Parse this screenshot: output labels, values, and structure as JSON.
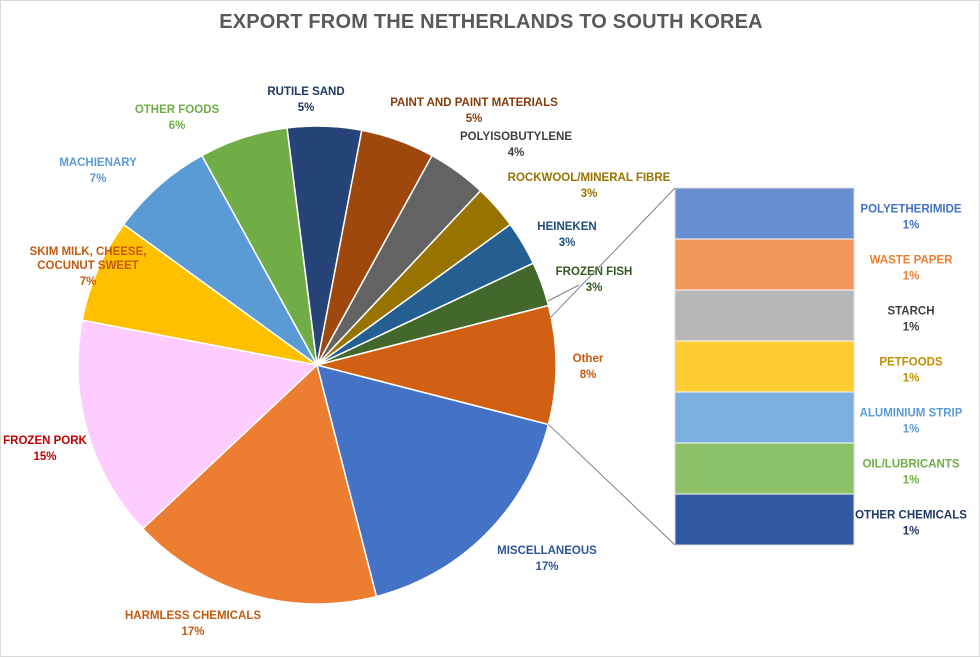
{
  "chart_data": {
    "type": "pie",
    "title": "EXPORT FROM THE NETHERLANDS TO SOUTH KOREA",
    "slices": [
      {
        "label": "MISCELLANEOUS",
        "value": 17,
        "display": "17%",
        "color": "#4472C4",
        "label_color": "#2F5597"
      },
      {
        "label": "HARMLESS CHEMICALS",
        "value": 17,
        "display": "17%",
        "color": "#ED7D31",
        "label_color": "#C55A11"
      },
      {
        "label": "FROZEN PORK",
        "value": 15,
        "display": "15%",
        "color": "#FFCCFF",
        "label_color": "#C00000"
      },
      {
        "label": "SKIM MILK, CHEESE, COCUNUT SWEET",
        "value": 7,
        "display": "7%",
        "color": "#FFC000",
        "label_color": "#C55A11"
      },
      {
        "label": "MACHIENARY",
        "value": 7,
        "display": "7%",
        "color": "#5B9BD5",
        "label_color": "#5B9BD5"
      },
      {
        "label": "OTHER FOODS",
        "value": 6,
        "display": "6%",
        "color": "#70AD47",
        "label_color": "#70AD47"
      },
      {
        "label": "RUTILE SAND",
        "value": 5,
        "display": "5%",
        "color": "#264478",
        "label_color": "#1F3864"
      },
      {
        "label": "PAINT AND PAINT MATERIALS",
        "value": 5,
        "display": "5%",
        "color": "#9E480E",
        "label_color": "#843C0C"
      },
      {
        "label": "POLYISOBUTYLENE",
        "value": 4,
        "display": "4%",
        "color": "#636363",
        "label_color": "#404040"
      },
      {
        "label": "ROCKWOOL/MINERAL FIBRE",
        "value": 3,
        "display": "3%",
        "color": "#997300",
        "label_color": "#997300"
      },
      {
        "label": "HEINEKEN",
        "value": 3,
        "display": "3%",
        "color": "#255E91",
        "label_color": "#1F4E79"
      },
      {
        "label": "FROZEN FISH",
        "value": 3,
        "display": "3%",
        "color": "#43682B",
        "label_color": "#375623"
      },
      {
        "label": "Other",
        "value": 8,
        "display": "8%",
        "color": "#D26012",
        "label_color": "#C55A11"
      }
    ],
    "breakdown": {
      "of": "Other",
      "type": "stacked-bar",
      "segments": [
        {
          "label": "POLYETHERIMIDE",
          "value": 1,
          "display": "1%",
          "color": "#698ED0",
          "label_color": "#4472C4"
        },
        {
          "label": "WASTE PAPER",
          "value": 1,
          "display": "1%",
          "color": "#F1975A",
          "label_color": "#ED7D31"
        },
        {
          "label": "STARCH",
          "value": 1,
          "display": "1%",
          "color": "#B7B7B7",
          "label_color": "#404040"
        },
        {
          "label": "PETFOODS",
          "value": 1,
          "display": "1%",
          "color": "#FFCD33",
          "label_color": "#BF9000"
        },
        {
          "label": "ALUMINIUM STRIP",
          "value": 1,
          "display": "1%",
          "color": "#7CAFDD",
          "label_color": "#5B9BD5"
        },
        {
          "label": "OIL/LUBRICANTS",
          "value": 1,
          "display": "1%",
          "color": "#8CC168",
          "label_color": "#70AD47"
        },
        {
          "label": "OTHER CHEMICALS",
          "value": 1,
          "display": "1%",
          "color": "#335AA1",
          "label_color": "#1F3864"
        }
      ]
    },
    "legend": "none"
  }
}
